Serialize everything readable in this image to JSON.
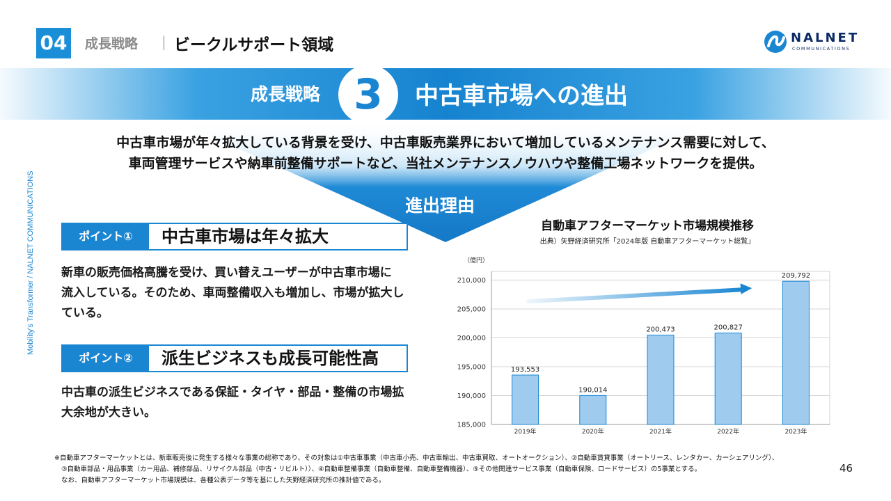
{
  "header": {
    "section_number": "04",
    "category": "成長戦略",
    "separator": "|",
    "title": "ビークルサポート領域"
  },
  "logo": {
    "name": "NALNET",
    "sub": "COMMUNICATIONS"
  },
  "banner": {
    "label": "成長戦略",
    "number": "3",
    "title": "中古車市場への進出"
  },
  "side_text": "Mobility's Transformer / NALNET COMMUNICATIONS",
  "intro": {
    "line1": "中古車市場が年々拡大している背景を受け、中古車販売業界において増加しているメンテナンス需要に対して、",
    "line2": "車両管理サービスや納車前整備サポートなど、当社メンテナンスノウハウや整備工場ネットワークを提供。"
  },
  "reason_label": "進出理由",
  "points": [
    {
      "tag": "ポイント①",
      "heading": "中古車市場は年々拡大",
      "body": [
        "新車の販売価格高騰を受け、買い替えユーザーが中古車市場に",
        "流入している。そのため、車両整備収入も増加し、市場が拡大し",
        "ている。"
      ]
    },
    {
      "tag": "ポイント②",
      "heading": "派生ビジネスも成長可能性高",
      "body": [
        "中古車の派生ビジネスである保証・タイヤ・部品・整備の市場拡",
        "大余地が大きい。"
      ]
    }
  ],
  "chart_title": "自動車アフターマーケット市場規模推移",
  "chart_source": "出典）矢野経済研究所「2024年版 自動車アフターマーケット総覧」",
  "chart_data": {
    "type": "bar",
    "unit_label": "（億円）",
    "categories": [
      "2019年",
      "2020年",
      "2021年",
      "2022年",
      "2023年"
    ],
    "values": [
      193553,
      190014,
      200473,
      200827,
      209792
    ],
    "data_labels": [
      "193,553",
      "190,014",
      "200,473",
      "200,827",
      "209,792"
    ],
    "yticks": [
      185000,
      190000,
      195000,
      200000,
      205000,
      210000
    ],
    "ytick_labels": [
      "185,000",
      "190,000",
      "195,000",
      "200,000",
      "205,000",
      "210,000"
    ],
    "ylim": [
      185000,
      211500
    ],
    "grid": true,
    "trend_arrow": true,
    "bar_color": "#9fcbef",
    "bar_border": "#1a86d2"
  },
  "footnote": [
    "※自動車アフターマーケットとは、新車販売後に発生する様々な事業の総称であり、その対象は①中古車事業（中古車小売、中古車輸出、中古車買取、オートオークション）、②自動車賃貸事業（オートリース、レンタカー、カーシェアリング）、",
    "③自動車部品・用品事業（カー用品、補修部品、リサイクル部品（中古・リビルト））、④自動車整備事業（自動車整備、自動車整備機器）、⑤その他関連サービス事業（自動車保険、ロードサービス）の5事業とする。",
    "なお、自動車アフターマーケット市場規模は、各種公表データ等を基にした矢野経済研究所の推計値である。"
  ],
  "page_number": "46",
  "colors": {
    "accent": "#1a86d2",
    "logo_navy": "#0c2a66"
  }
}
